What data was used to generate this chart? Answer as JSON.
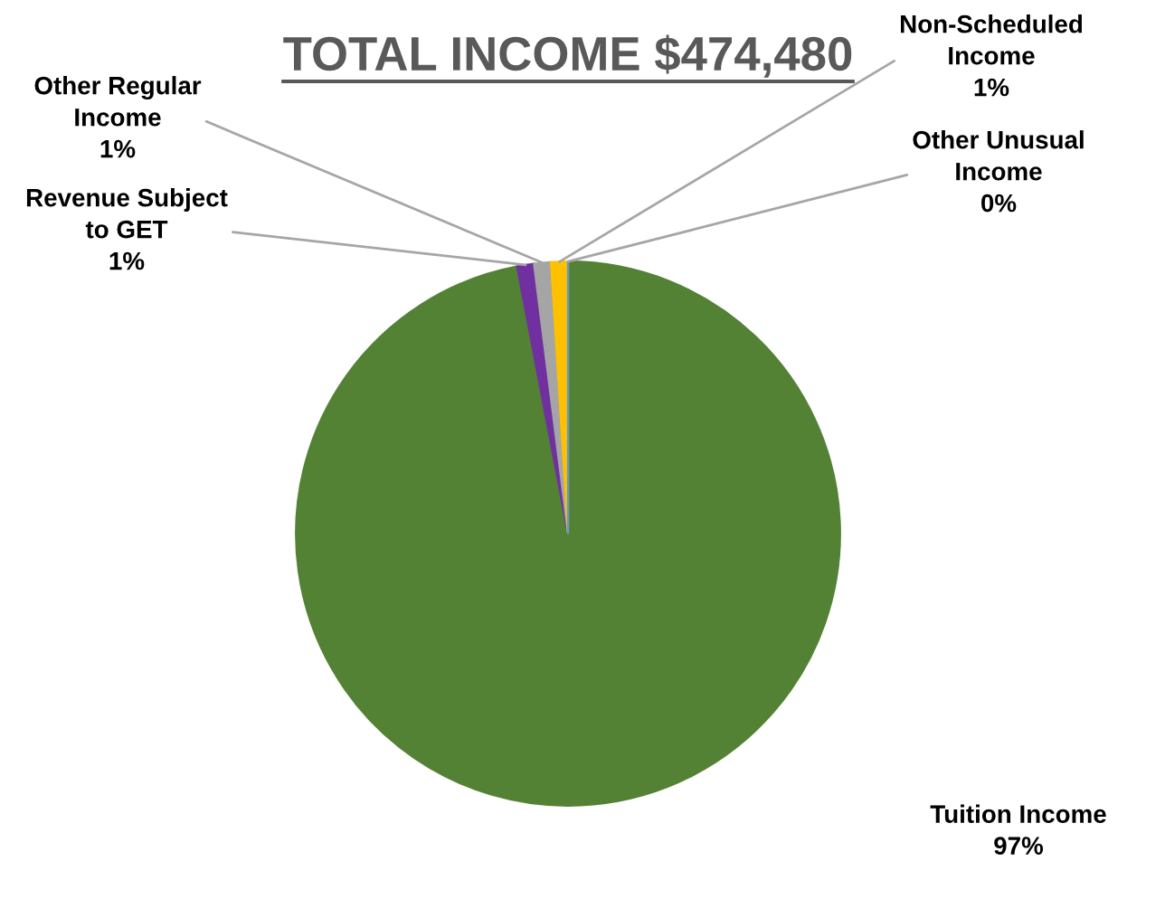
{
  "chart_data": {
    "type": "pie",
    "title": "TOTAL INCOME $474,480",
    "categories": [
      "Tuition Income",
      "Revenue Subject\nto GET",
      "Other Regular\nIncome",
      "Non-Scheduled\nIncome",
      "Other Unusual\nIncome"
    ],
    "values": [
      97,
      1,
      1,
      1,
      0
    ],
    "value_labels": [
      "97%",
      "1%",
      "1%",
      "1%",
      "0%"
    ],
    "colors": [
      "#548235",
      "#7030a0",
      "#a5a5a5",
      "#ffc000",
      "#5b9bd5"
    ],
    "legend": false
  }
}
